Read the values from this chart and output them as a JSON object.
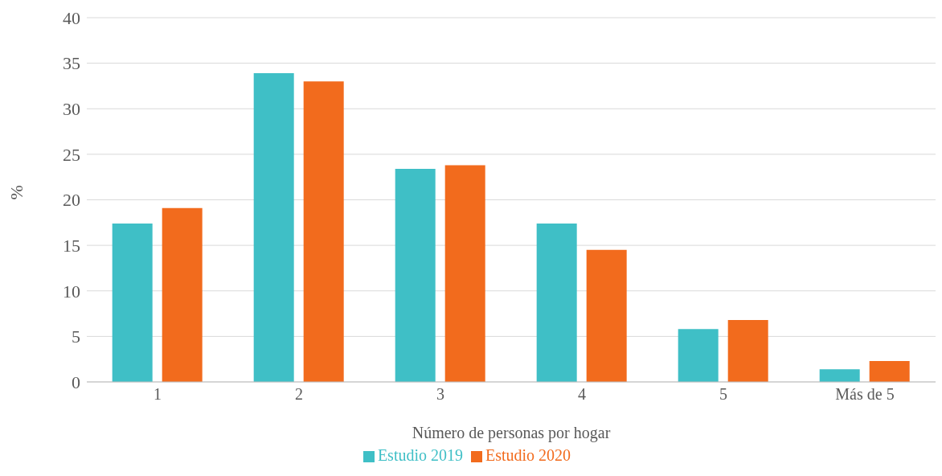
{
  "chart_data": {
    "type": "bar",
    "xlabel": "Número de personas por hogar",
    "ylabel": "%",
    "categories": [
      "1",
      "2",
      "3",
      "4",
      "5",
      "Más de 5"
    ],
    "series": [
      {
        "name": "Estudio 2019",
        "color": "#3fbfc6",
        "values": [
          17.4,
          33.9,
          23.4,
          17.4,
          5.8,
          1.4
        ]
      },
      {
        "name": "Estudio 2020",
        "color": "#f26b1d",
        "values": [
          19.1,
          33.0,
          23.8,
          14.5,
          6.8,
          2.3
        ]
      }
    ],
    "ylim": [
      0,
      40
    ],
    "yticks": [
      0,
      5,
      10,
      15,
      20,
      25,
      30,
      35,
      40
    ],
    "grid": "y",
    "legend": "bottom"
  }
}
